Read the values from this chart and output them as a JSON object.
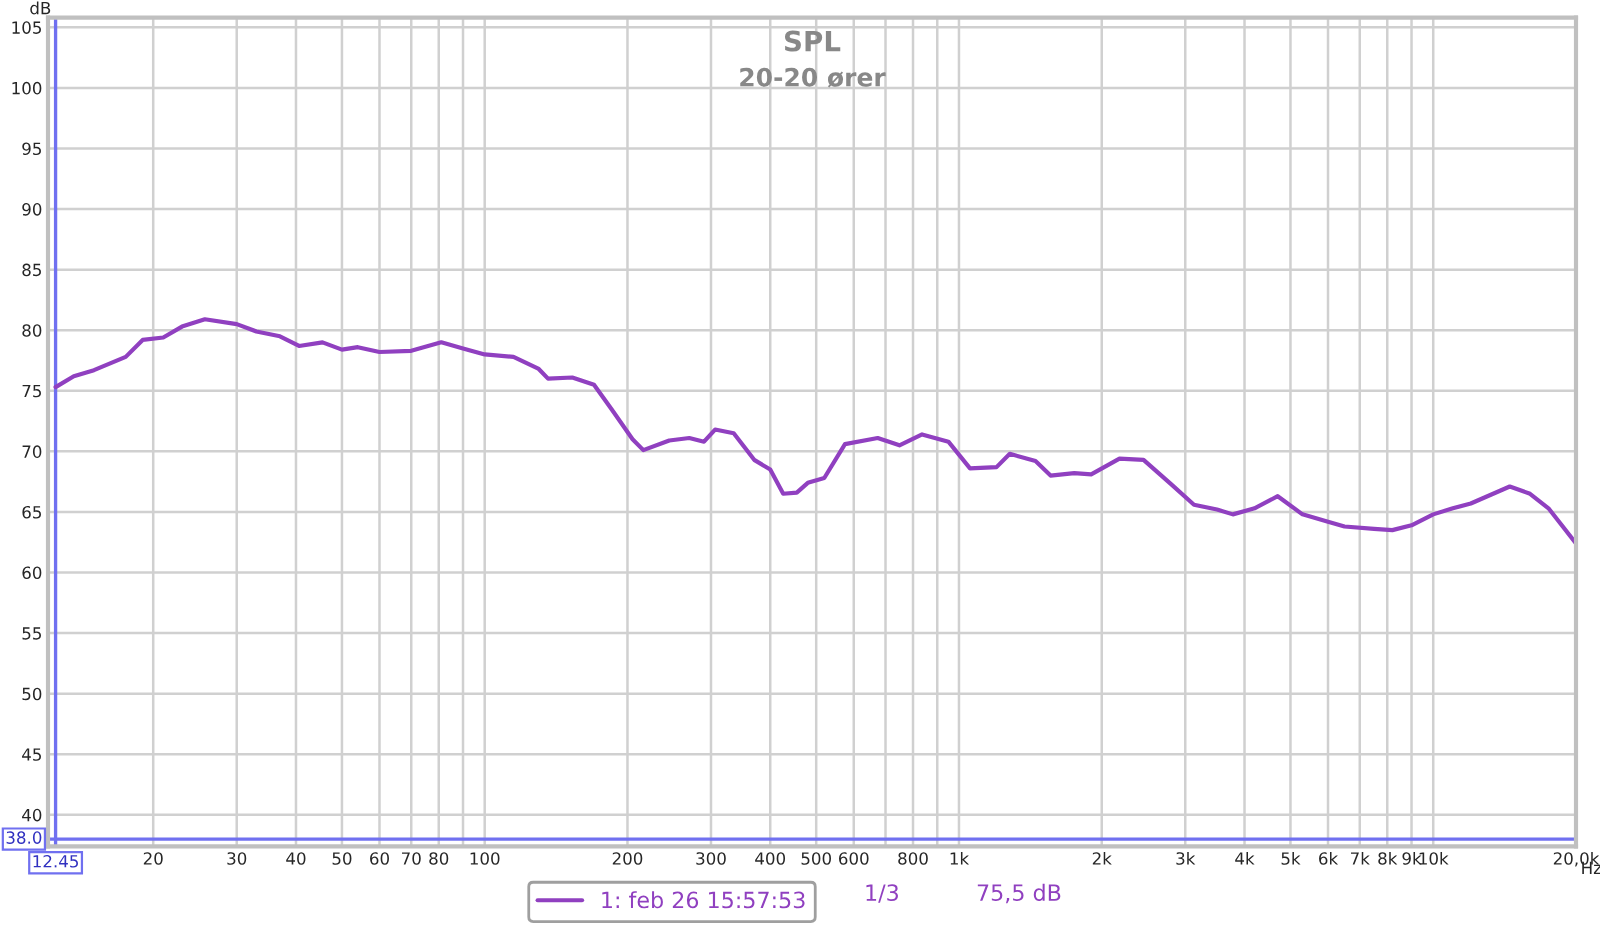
{
  "chart_data": {
    "type": "line",
    "title": "SPL",
    "subtitle": "20-20 ører",
    "xlabel": "Hz",
    "ylabel": "dB",
    "log": "x",
    "grid": true,
    "legend": "bottom",
    "marker": "none",
    "line_style": "solid",
    "xlim": [
      12,
      20000
    ],
    "ylim": [
      37.4,
      105.8
    ],
    "xticks": [
      20,
      30,
      40,
      50,
      60,
      70,
      80,
      {
        "value": 90,
        "label": null
      },
      100,
      200,
      300,
      400,
      500,
      600,
      {
        "value": 700,
        "label": null
      },
      800,
      {
        "value": 900,
        "label": null
      },
      {
        "value": 1000,
        "label": "1k"
      },
      {
        "value": 2000,
        "label": "2k"
      },
      {
        "value": 3000,
        "label": "3k"
      },
      {
        "value": 4000,
        "label": "4k"
      },
      {
        "value": 5000,
        "label": "5k"
      },
      {
        "value": 6000,
        "label": "6k"
      },
      {
        "value": 7000,
        "label": "7k"
      },
      {
        "value": 8000,
        "label": "8k"
      },
      {
        "value": 9000,
        "label": "9k"
      },
      {
        "value": 10000,
        "label": "10k"
      },
      {
        "value": 20000,
        "label": "20,0k"
      }
    ],
    "yticks": [
      40,
      45,
      50,
      55,
      60,
      65,
      70,
      75,
      80,
      85,
      90,
      95,
      100,
      105
    ],
    "ref_lines": [
      {
        "axis": "x",
        "value": 12.45,
        "label": "12.45",
        "color": "#7070f0"
      },
      {
        "axis": "y",
        "value": 38,
        "label": "38.0",
        "color": "#7070f0"
      }
    ],
    "annotations": [
      "1/3",
      "75,5 dB"
    ],
    "series": [
      {
        "name": "1: feb 26 15:57:53",
        "color": "#9040c0",
        "x": [
          12.45,
          13.6,
          15,
          17.5,
          19,
          21,
          23,
          25.7,
          30,
          33,
          37,
          40.6,
          45.5,
          50,
          54,
          60,
          70,
          81,
          90,
          100,
          115,
          130,
          136,
          153,
          170,
          185,
          205,
          216,
          245,
          270,
          290,
          306,
          335,
          370,
          400,
          426,
          455,
          480,
          520,
          575,
          674,
          749,
          836,
          950,
          1055,
          1200,
          1280,
          1450,
          1560,
          1750,
          1900,
          2180,
          2450,
          2800,
          3130,
          3500,
          3780,
          4200,
          4700,
          5300,
          6000,
          6500,
          7500,
          8200,
          9000,
          10000,
          11000,
          12000,
          14500,
          16000,
          17500,
          20000
        ],
        "values": [
          75.3,
          76.2,
          76.7,
          77.8,
          79.2,
          79.4,
          80.3,
          80.9,
          80.5,
          79.9,
          79.5,
          78.7,
          79.0,
          78.4,
          78.6,
          78.2,
          78.3,
          79.0,
          78.5,
          78.0,
          77.8,
          76.8,
          76.0,
          76.1,
          75.5,
          73.5,
          71.0,
          70.1,
          70.9,
          71.1,
          70.8,
          71.8,
          71.5,
          69.3,
          68.5,
          66.5,
          66.6,
          67.4,
          67.8,
          70.6,
          71.1,
          70.5,
          71.4,
          70.8,
          68.6,
          68.7,
          69.8,
          69.2,
          68.0,
          68.2,
          68.1,
          69.4,
          69.3,
          67.3,
          65.6,
          65.2,
          64.8,
          65.3,
          66.3,
          64.8,
          64.2,
          63.8,
          63.6,
          63.5,
          63.9,
          64.8,
          65.3,
          65.7,
          67.1,
          66.5,
          65.3,
          62.4
        ]
      }
    ]
  }
}
